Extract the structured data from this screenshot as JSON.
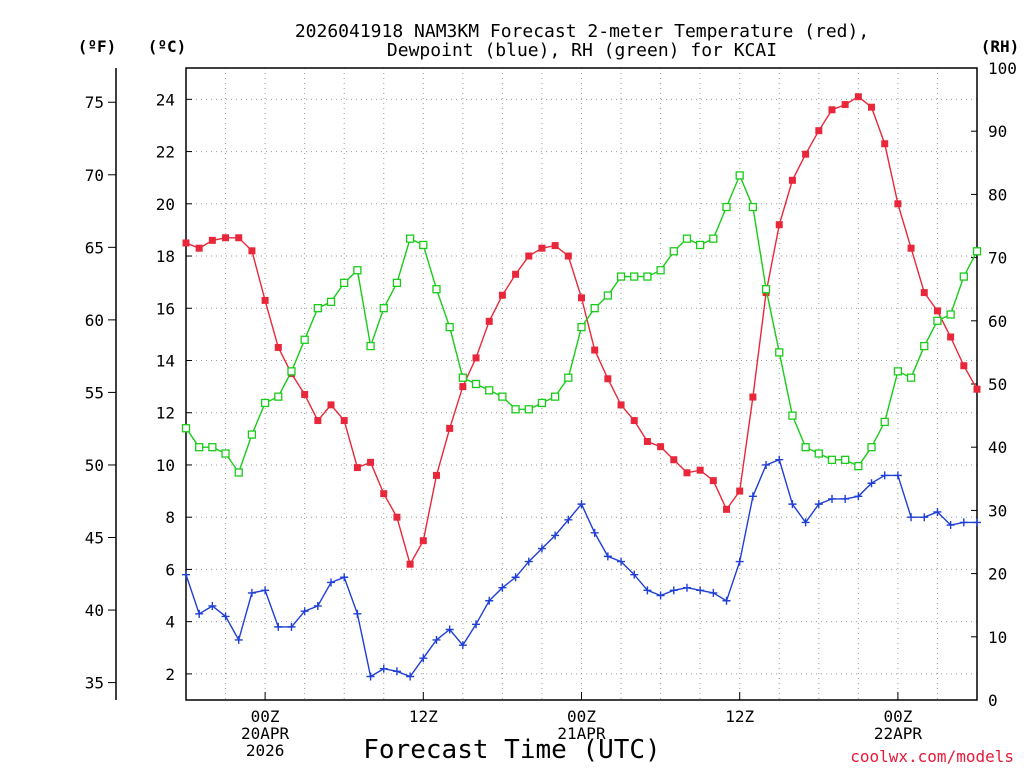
{
  "chart_data": {
    "type": "line",
    "title": [
      "2026041918 NAM3KM Forecast 2-meter Temperature (red),",
      "Dewpoint (blue), RH (green) for KCAI"
    ],
    "xlabel": "Forecast Time (UTC)",
    "credit": "coolwx.com/models",
    "units": {
      "fahrenheit": "(ºF)",
      "celsius": "(ºC)",
      "rh": "(RH)"
    },
    "x_range_hours": [
      -6,
      54
    ],
    "celsius_range": [
      1.0,
      25.2
    ],
    "rh_range": [
      0,
      100
    ],
    "x_ticks": [
      {
        "hour": 0,
        "lines": [
          "00Z",
          "20APR",
          "2026"
        ]
      },
      {
        "hour": 12,
        "lines": [
          "12Z"
        ]
      },
      {
        "hour": 24,
        "lines": [
          "00Z",
          "21APR"
        ]
      },
      {
        "hour": 36,
        "lines": [
          "12Z"
        ]
      },
      {
        "hour": 48,
        "lines": [
          "00Z",
          "22APR"
        ]
      }
    ],
    "celsius_ticks": [
      "2",
      "4",
      "6",
      "8",
      "10",
      "12",
      "14",
      "16",
      "18",
      "20",
      "22",
      "24"
    ],
    "fahrenheit_ticks": [
      "35",
      "40",
      "45",
      "50",
      "55",
      "60",
      "65",
      "70",
      "75"
    ],
    "rh_ticks": [
      "0",
      "10",
      "20",
      "30",
      "40",
      "50",
      "60",
      "70",
      "80",
      "90",
      "100"
    ],
    "series": [
      {
        "name": "2-meter Temperature",
        "unit": "C",
        "color": "#e8283a",
        "marker": "filled-square",
        "values": [
          18.5,
          18.3,
          18.6,
          18.7,
          18.7,
          18.2,
          16.3,
          14.5,
          13.5,
          12.7,
          11.7,
          12.3,
          11.7,
          9.9,
          10.1,
          8.9,
          8.0,
          6.2,
          7.1,
          9.6,
          11.4,
          13.0,
          14.1,
          15.5,
          16.5,
          17.3,
          18.0,
          18.3,
          18.4,
          18.0,
          16.4,
          14.4,
          13.3,
          12.3,
          11.7,
          10.9,
          10.7,
          10.2,
          9.7,
          9.8,
          9.4,
          8.3,
          9.0,
          12.6,
          16.6,
          19.2,
          20.9,
          21.9,
          22.8,
          23.6,
          23.8,
          24.1,
          23.7,
          22.3,
          20.0,
          18.3,
          16.6,
          15.9,
          14.9,
          13.8,
          12.9
        ]
      },
      {
        "name": "Dewpoint",
        "unit": "C",
        "color": "#1f3fd6",
        "marker": "plus",
        "values": [
          5.8,
          4.3,
          4.6,
          4.2,
          3.3,
          5.1,
          5.2,
          3.8,
          3.8,
          4.4,
          4.6,
          5.5,
          5.7,
          4.3,
          1.9,
          2.2,
          2.1,
          1.9,
          2.6,
          3.3,
          3.7,
          3.1,
          3.9,
          4.8,
          5.3,
          5.7,
          6.3,
          6.8,
          7.3,
          7.9,
          8.5,
          7.4,
          6.5,
          6.3,
          5.8,
          5.2,
          5.0,
          5.2,
          5.3,
          5.2,
          5.1,
          4.8,
          6.3,
          8.8,
          10.0,
          10.2,
          8.5,
          7.8,
          8.5,
          8.7,
          8.7,
          8.8,
          9.3,
          9.6,
          9.6,
          8.0,
          8.0,
          8.2,
          7.7,
          7.8,
          7.8
        ]
      },
      {
        "name": "Relative Humidity",
        "unit": "%",
        "color": "#19cc19",
        "marker": "open-square",
        "values": [
          43,
          40,
          40,
          39,
          36,
          42,
          47,
          48,
          52,
          57,
          62,
          63,
          66,
          68,
          56,
          62,
          66,
          73,
          72,
          65,
          59,
          51,
          50,
          49,
          48,
          46,
          46,
          47,
          48,
          51,
          59,
          62,
          64,
          67,
          67,
          67,
          68,
          71,
          73,
          72,
          73,
          78,
          83,
          78,
          65,
          55,
          45,
          40,
          39,
          38,
          38,
          37,
          40,
          44,
          52,
          51,
          56,
          60,
          61,
          67,
          71
        ]
      }
    ]
  }
}
